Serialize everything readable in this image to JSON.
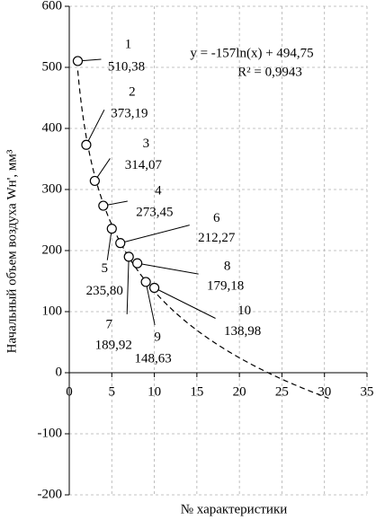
{
  "chart_data": {
    "type": "scatter",
    "x_label": "№ характеристики",
    "y_label": "Начальный объем воздуха Wн', мм³",
    "x": [
      1,
      2,
      3,
      4,
      5,
      6,
      7,
      8,
      9,
      10
    ],
    "values": [
      510.38,
      373.19,
      314.07,
      273.45,
      235.8,
      212.27,
      189.92,
      179.18,
      148.63,
      138.98
    ],
    "value_labels": [
      "510,38",
      "373,19",
      "314,07",
      "273,45",
      "235,80",
      "212,27",
      "189,92",
      "179,18",
      "148,63",
      "138,98"
    ],
    "xlim": [
      0,
      35
    ],
    "xticks": [
      0,
      5,
      10,
      15,
      20,
      25,
      30,
      35
    ],
    "ylim": [
      -200,
      600
    ],
    "yticks": [
      -200,
      -100,
      0,
      100,
      200,
      300,
      400,
      500,
      600
    ],
    "grid": true,
    "trendline": {
      "equation": "y = -157ln(x) + 494,75",
      "r2_label": "R² = 0,9943",
      "slope": -157,
      "intercept": 494.75,
      "xlim": [
        1,
        30.5
      ]
    }
  }
}
